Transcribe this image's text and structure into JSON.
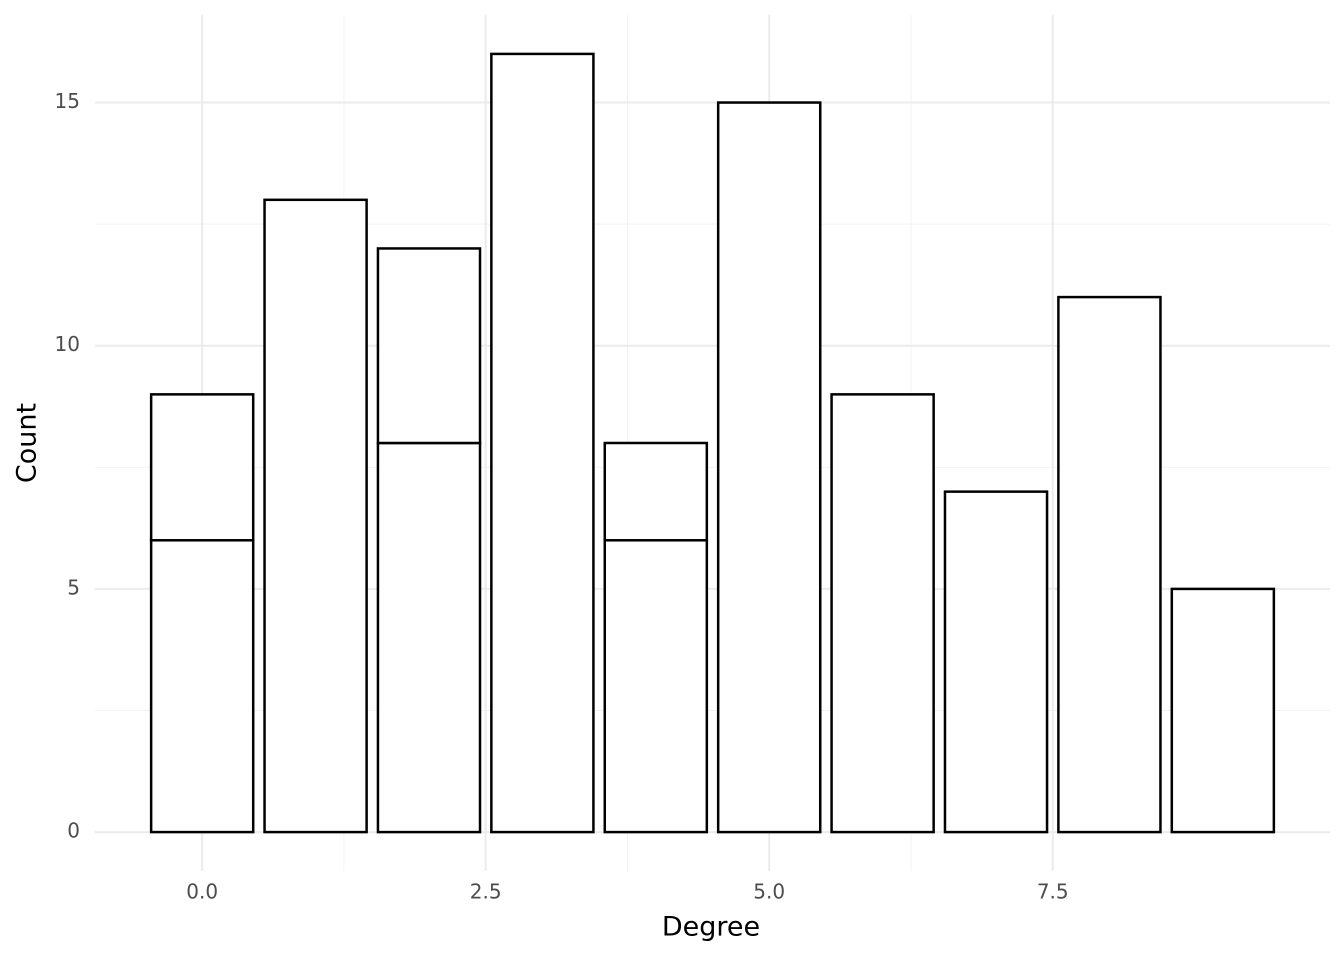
{
  "chart_data": {
    "type": "stacked-bar",
    "x_label": "Degree",
    "y_label": "Count",
    "x": [
      0,
      1,
      2,
      3,
      4,
      5,
      6,
      7,
      8,
      9
    ],
    "series": [
      {
        "color": "#ffffff",
        "values": [
          6,
          13,
          8,
          16,
          6,
          15,
          9,
          7,
          11,
          5
        ]
      },
      {
        "color": "#ffffff",
        "values": [
          3,
          null,
          4,
          null,
          2,
          null,
          null,
          null,
          null,
          null
        ]
      }
    ],
    "bar_width": 0.9,
    "xlim": [
      -0.945,
      9.945
    ],
    "xticks": [
      {
        "value": 0,
        "label": "0.0"
      },
      2.5,
      {
        "value": 5,
        "label": "5.0"
      },
      7.5
    ],
    "ylim": [
      -0.8,
      16.8
    ],
    "yticks": [
      0,
      5,
      10,
      15
    ],
    "grid": true
  }
}
